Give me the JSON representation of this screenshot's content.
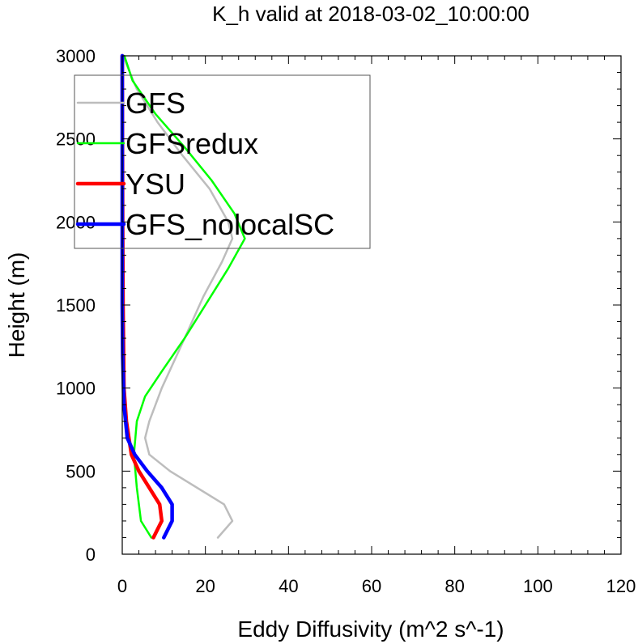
{
  "chart_data": {
    "type": "line",
    "title": "K_h valid at 2018-03-02_10:00:00",
    "xlabel": "Eddy Diffusivity (m^2 s^-1)",
    "ylabel": "Height (m)",
    "xlim": [
      0,
      120
    ],
    "ylim": [
      0,
      3000
    ],
    "xticks": [
      "0",
      "20",
      "40",
      "60",
      "80",
      "100",
      "120"
    ],
    "yticks": [
      "0",
      "500",
      "1000",
      "1500",
      "2000",
      "2500",
      "3000"
    ],
    "grid": false,
    "legend_position": "top-left",
    "series": [
      {
        "name": "GFS",
        "color": "#bdbdbd",
        "points": [
          [
            23.0,
            100
          ],
          [
            26.5,
            200
          ],
          [
            24.5,
            300
          ],
          [
            11.5,
            500
          ],
          [
            6.5,
            600
          ],
          [
            5.5,
            700
          ],
          [
            6.5,
            800
          ],
          [
            9.5,
            1000
          ],
          [
            15.0,
            1300
          ],
          [
            19.5,
            1550
          ],
          [
            24.0,
            1760
          ],
          [
            26.5,
            1900
          ],
          [
            25.5,
            2000
          ],
          [
            21.0,
            2200
          ],
          [
            14.5,
            2400
          ],
          [
            8.5,
            2600
          ],
          [
            3.5,
            2800
          ],
          [
            1.0,
            2950
          ],
          [
            0.3,
            3000
          ]
        ]
      },
      {
        "name": "GFSredux",
        "color": "#00ff00",
        "points": [
          [
            7.0,
            100
          ],
          [
            4.5,
            200
          ],
          [
            3.5,
            400
          ],
          [
            2.8,
            600
          ],
          [
            3.5,
            800
          ],
          [
            5.5,
            950
          ],
          [
            9.5,
            1100
          ],
          [
            15.0,
            1300
          ],
          [
            20.0,
            1500
          ],
          [
            25.5,
            1720
          ],
          [
            29.5,
            1900
          ],
          [
            27.0,
            2050
          ],
          [
            21.5,
            2250
          ],
          [
            15.0,
            2450
          ],
          [
            8.0,
            2650
          ],
          [
            2.5,
            2850
          ],
          [
            0.5,
            3000
          ]
        ]
      },
      {
        "name": "YSU",
        "color": "#ff0000",
        "points": [
          [
            7.5,
            100
          ],
          [
            9.5,
            200
          ],
          [
            9.0,
            300
          ],
          [
            6.5,
            400
          ],
          [
            4.0,
            500
          ],
          [
            2.2,
            600
          ],
          [
            1.0,
            800
          ],
          [
            0.4,
            1000
          ],
          [
            0.2,
            1500
          ],
          [
            0.1,
            2000
          ],
          [
            0.0,
            3000
          ]
        ]
      },
      {
        "name": "GFS_nolocalSC",
        "color": "#0000ff",
        "points": [
          [
            10.0,
            100
          ],
          [
            12.0,
            200
          ],
          [
            12.0,
            300
          ],
          [
            9.5,
            400
          ],
          [
            6.0,
            500
          ],
          [
            3.0,
            600
          ],
          [
            1.2,
            700
          ],
          [
            0.4,
            900
          ],
          [
            0.1,
            1200
          ],
          [
            0.0,
            1500
          ],
          [
            0.0,
            2000
          ],
          [
            0.0,
            3000
          ]
        ]
      }
    ]
  }
}
